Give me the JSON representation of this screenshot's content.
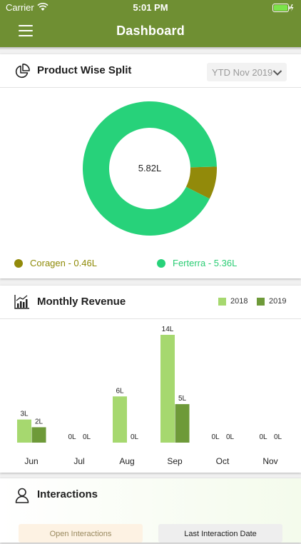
{
  "status_bar": {
    "carrier": "Carrier",
    "time": "5:01 PM"
  },
  "nav": {
    "title": "Dashboard"
  },
  "product_split": {
    "title": "Product Wise Split",
    "period": "YTD Nov 2019",
    "center_label": "5.82L",
    "legend": [
      {
        "label": "Coragen - 0.46L",
        "color": "#928a0a"
      },
      {
        "label": "Ferterra - 5.36L",
        "color": "#27d27a"
      }
    ]
  },
  "monthly_revenue": {
    "title": "Monthly Revenue",
    "legend": [
      {
        "label": "2018",
        "color": "#a6d86f"
      },
      {
        "label": "2019",
        "color": "#6e9a39"
      }
    ]
  },
  "interactions": {
    "title": "Interactions",
    "open_label": "Open Interactions",
    "last_label": "Last Interaction Date"
  },
  "chart_data": [
    {
      "type": "pie",
      "title": "Product Wise Split",
      "categories": [
        "Coragen",
        "Ferterra"
      ],
      "values": [
        0.46,
        5.36
      ],
      "unit": "L",
      "center_label": "5.82L",
      "colors": [
        "#928a0a",
        "#27d27a"
      ]
    },
    {
      "type": "bar",
      "title": "Monthly Revenue",
      "categories": [
        "Jun",
        "Jul",
        "Aug",
        "Sep",
        "Oct",
        "Nov"
      ],
      "series": [
        {
          "name": "2018",
          "values": [
            3,
            0,
            6,
            14,
            0,
            0
          ],
          "labels": [
            "3L",
            "0L",
            "6L",
            "14L",
            "0L",
            "0L"
          ],
          "color": "#a6d86f"
        },
        {
          "name": "2019",
          "values": [
            2,
            0,
            0,
            5,
            0,
            0
          ],
          "labels": [
            "2L",
            "0L",
            "0L",
            "5L",
            "0L",
            "0L"
          ],
          "color": "#6e9a39"
        }
      ],
      "ylim": [
        0,
        14
      ],
      "grid": false,
      "legend_position": "top-right"
    }
  ]
}
